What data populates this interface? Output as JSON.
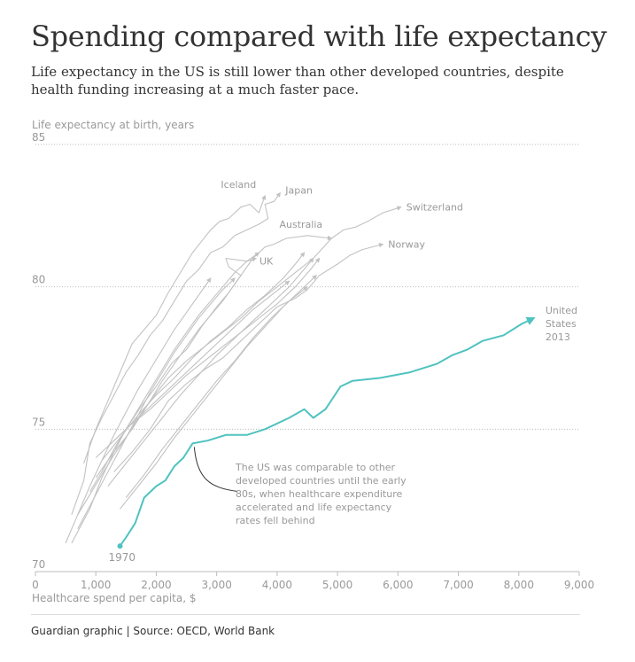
{
  "title": "Spending compared with life expectancy",
  "subtitle": "Life expectancy in the US is still lower than other developed countries, despite health funding increasing at a much faster pace.",
  "footer": "Guardian graphic | Source: OECD, World Bank",
  "colors": {
    "us": "#4fc3c0",
    "others": "#c2c2c2",
    "text": "#333333",
    "axis": "#999999"
  },
  "chart_data": {
    "type": "line",
    "xlabel": "Healthcare spend per capita, $",
    "ylabel": "Life expectancy at birth, years",
    "xlim": [
      0,
      9000
    ],
    "ylim": [
      70,
      85
    ],
    "xticks": [
      0,
      1000,
      2000,
      3000,
      4000,
      5000,
      6000,
      7000,
      8000,
      9000
    ],
    "xtick_labels": [
      "0",
      "1,000",
      "2,000",
      "3,000",
      "4,000",
      "5,000",
      "6,000",
      "7,000",
      "8,000",
      "9,000"
    ],
    "yticks": [
      70,
      75,
      80,
      85
    ],
    "ytick_labels": [
      "70",
      "75",
      "80",
      "85"
    ],
    "grid": "horizontal dotted",
    "series": [
      {
        "name": "United States",
        "highlight": true,
        "start_label": "1970",
        "end_label": [
          "United",
          "States",
          "2013"
        ],
        "x": [
          1400,
          1500,
          1650,
          1800,
          2000,
          2150,
          2300,
          2450,
          2600,
          2850,
          3150,
          3500,
          3800,
          4200,
          4450,
          4600,
          4800,
          5050,
          5250,
          5700,
          6200,
          6650,
          6900,
          7150,
          7400,
          7750,
          8050,
          8250
        ],
        "y": [
          70.9,
          71.2,
          71.7,
          72.6,
          73.0,
          73.2,
          73.7,
          74.0,
          74.5,
          74.6,
          74.8,
          74.8,
          75.0,
          75.4,
          75.7,
          75.4,
          75.7,
          76.5,
          76.7,
          76.8,
          77.0,
          77.3,
          77.6,
          77.8,
          78.1,
          78.3,
          78.7,
          78.9
        ]
      },
      {
        "name": "Japan",
        "x": [
          600,
          800,
          900,
          1100,
          1300,
          1500,
          1700,
          1900,
          2100,
          2300,
          2500,
          2700,
          2900,
          3100,
          3300,
          3500,
          3700,
          3850,
          3800,
          3950,
          4050
        ],
        "y": [
          72.0,
          73.2,
          74.5,
          75.4,
          76.2,
          77.0,
          77.6,
          78.3,
          78.8,
          79.5,
          80.2,
          80.6,
          81.2,
          81.4,
          81.8,
          82.0,
          82.2,
          82.4,
          82.9,
          83.0,
          83.3
        ]
      },
      {
        "name": "Iceland",
        "x": [
          800,
          1000,
          1200,
          1400,
          1600,
          1800,
          2000,
          2200,
          2400,
          2600,
          2750,
          2900,
          3050,
          3200,
          3400,
          3550,
          3700,
          3800
        ],
        "y": [
          73.8,
          75.0,
          76.0,
          77.0,
          78.0,
          78.5,
          79.0,
          79.8,
          80.5,
          81.2,
          81.6,
          82.0,
          82.3,
          82.4,
          82.8,
          82.9,
          82.6,
          83.2
        ]
      },
      {
        "name": "Australia",
        "x": [
          600,
          900,
          1100,
          1300,
          1500,
          1750,
          2000,
          2250,
          2500,
          2750,
          3000,
          3200,
          3400,
          3600,
          3800,
          3950,
          4150,
          4500,
          4900
        ],
        "y": [
          71.0,
          72.2,
          73.3,
          74.2,
          75.0,
          75.8,
          76.5,
          77.3,
          77.8,
          78.6,
          79.3,
          79.8,
          80.4,
          81.0,
          81.4,
          81.5,
          81.7,
          81.8,
          81.7
        ]
      },
      {
        "name": "Switzerland",
        "x": [
          1000,
          1300,
          1600,
          1900,
          2200,
          2500,
          2800,
          3100,
          3400,
          3700,
          4000,
          4300,
          4600,
          4900,
          5100,
          5300,
          5500,
          5750,
          6050
        ],
        "y": [
          73.3,
          74.2,
          75.0,
          76.0,
          76.8,
          77.4,
          77.9,
          78.4,
          78.9,
          79.5,
          80.0,
          80.5,
          81.0,
          81.7,
          82.0,
          82.1,
          82.3,
          82.6,
          82.8
        ]
      },
      {
        "name": "Norway",
        "x": [
          1300,
          1600,
          1900,
          2200,
          2500,
          2800,
          3100,
          3400,
          3700,
          4000,
          4300,
          4500,
          4700,
          4850,
          5000,
          5200,
          5400,
          5750
        ],
        "y": [
          73.5,
          74.2,
          75.0,
          76.0,
          76.6,
          77.1,
          77.5,
          78.1,
          78.7,
          79.3,
          79.6,
          79.9,
          80.4,
          80.6,
          80.8,
          81.1,
          81.3,
          81.5
        ]
      },
      {
        "name": "UK",
        "x": [
          700,
          900,
          1100,
          1300,
          1500,
          1700,
          1900,
          2100,
          2300,
          2500,
          2700,
          2900,
          3100,
          3300,
          3400,
          3200,
          3150,
          3500,
          3650
        ],
        "y": [
          72.0,
          72.7,
          73.4,
          74.1,
          74.7,
          75.4,
          76.0,
          76.7,
          77.3,
          77.9,
          78.5,
          79.0,
          79.5,
          80.1,
          80.4,
          80.7,
          81.0,
          80.9,
          81.0
        ]
      },
      {
        "x": [
          900,
          1100,
          1300,
          1500,
          1700,
          1900,
          2100,
          2300,
          2500,
          2700,
          2900,
          3100,
          3300,
          3500,
          3700
        ],
        "y": [
          72.8,
          73.5,
          74.3,
          75.0,
          75.7,
          76.4,
          77.1,
          77.8,
          78.4,
          79.0,
          79.5,
          80.0,
          80.5,
          80.9,
          81.2
        ]
      },
      {
        "x": [
          1000,
          1300,
          1600,
          1900,
          2200,
          2500,
          2800,
          3100,
          3400,
          3700,
          4000,
          4300,
          4550,
          4700
        ],
        "y": [
          74.0,
          74.6,
          75.2,
          75.7,
          76.3,
          76.9,
          77.4,
          77.9,
          78.4,
          78.9,
          79.4,
          80.0,
          80.6,
          81.0
        ]
      },
      {
        "x": [
          1200,
          1500,
          1800,
          2100,
          2400,
          2700,
          3000,
          3300,
          3600,
          3900,
          4200,
          4400,
          4600
        ],
        "y": [
          73.0,
          73.8,
          74.6,
          75.4,
          76.2,
          76.9,
          77.6,
          78.2,
          78.8,
          79.4,
          80.0,
          80.5,
          81.0
        ]
      },
      {
        "x": [
          1500,
          1800,
          2100,
          2400,
          2700,
          3000,
          3300,
          3600,
          3900,
          4200,
          4500
        ],
        "y": [
          72.6,
          73.4,
          74.3,
          75.1,
          75.9,
          76.7,
          77.4,
          78.2,
          78.9,
          79.5,
          80.0
        ]
      },
      {
        "x": [
          1100,
          1400,
          1700,
          2000,
          2300,
          2600,
          2900,
          3200,
          3500,
          3800,
          4100,
          4300,
          4450
        ],
        "y": [
          73.9,
          74.7,
          75.5,
          76.2,
          76.8,
          77.5,
          78.1,
          78.6,
          79.2,
          79.7,
          80.3,
          80.8,
          81.2
        ]
      },
      {
        "x": [
          700,
          900,
          1100,
          1300,
          1500,
          1700,
          1900,
          2100,
          2300,
          2500,
          2700,
          2900,
          3100,
          3300
        ],
        "y": [
          71.5,
          72.3,
          73.1,
          73.9,
          74.7,
          75.5,
          76.3,
          77.0,
          77.7,
          78.3,
          78.9,
          79.4,
          79.9,
          80.3
        ]
      },
      {
        "x": [
          500,
          700,
          900,
          1100,
          1300,
          1500,
          1700,
          1900,
          2100,
          2300,
          2500,
          2700,
          2900
        ],
        "y": [
          71.0,
          72.0,
          73.0,
          73.9,
          74.8,
          75.6,
          76.4,
          77.1,
          77.8,
          78.5,
          79.1,
          79.7,
          80.3
        ]
      },
      {
        "x": [
          1400,
          1700,
          2000,
          2300,
          2600,
          2900,
          3200,
          3500,
          3800,
          4100,
          4400,
          4650
        ],
        "y": [
          72.2,
          73.0,
          73.8,
          74.7,
          75.5,
          76.3,
          77.1,
          77.9,
          78.6,
          79.3,
          79.9,
          80.4
        ]
      },
      {
        "x": [
          1200,
          1500,
          1800,
          2100,
          2400,
          2700,
          3000,
          3300,
          3600,
          3900,
          4200
        ],
        "y": [
          74.4,
          75.0,
          75.6,
          76.2,
          76.8,
          77.4,
          78.0,
          78.6,
          79.2,
          79.7,
          80.2
        ]
      }
    ],
    "annotations": [
      {
        "text": [
          "The US was comparable to other",
          "developed countries until the early",
          "80s, when healthcare expenditure",
          "accelerated and life expectancy",
          "rates fell behind"
        ],
        "target": [
          2600,
          74.5
        ]
      }
    ]
  }
}
